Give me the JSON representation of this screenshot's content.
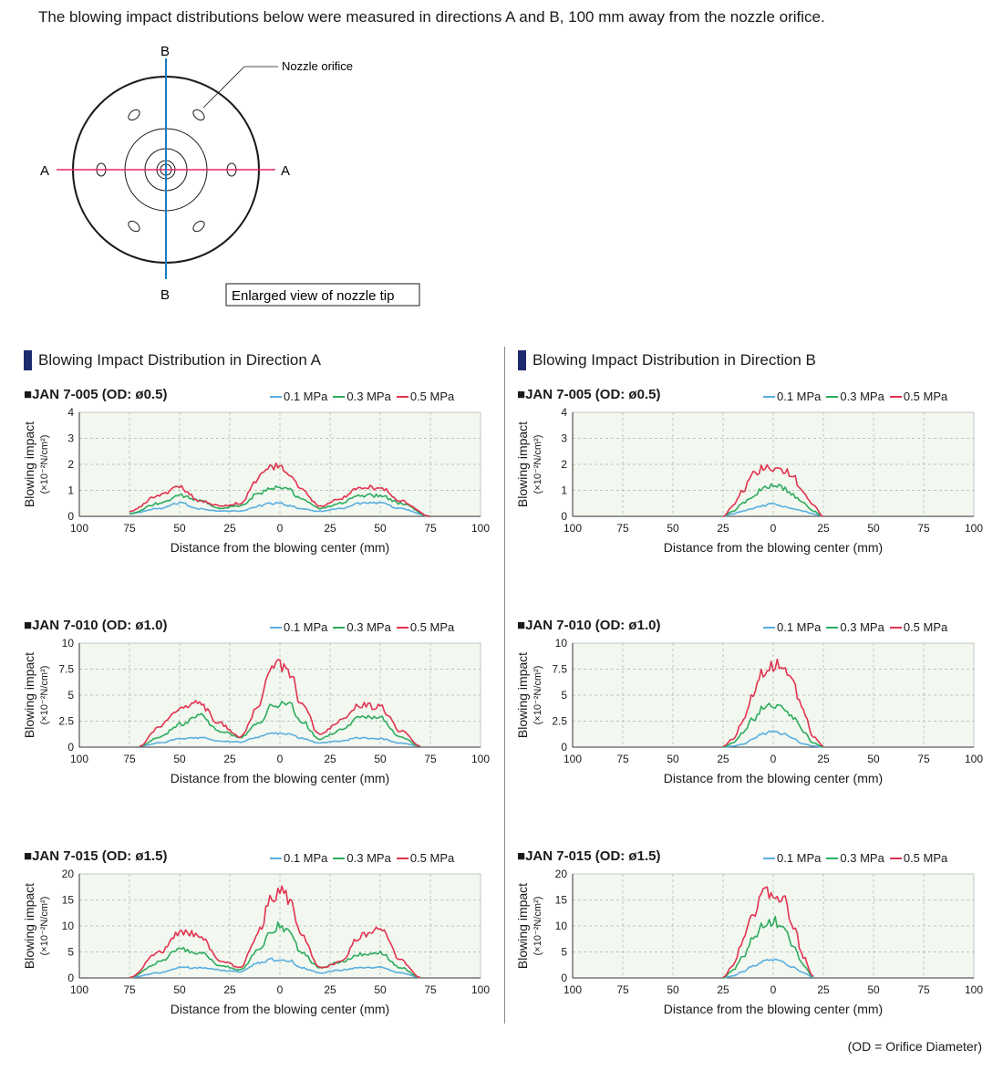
{
  "intro_text": "The blowing impact distributions below were measured in directions A and B, 100 mm away from the nozzle orifice.",
  "nozzle_diagram": {
    "orifice_label": "Nozzle orifice",
    "direction_a": "A",
    "direction_b": "B",
    "caption": "Enlarged view of nozzle tip",
    "color_a": "#e6246c",
    "color_b": "#1a7fc0"
  },
  "sections": {
    "a": {
      "title": "Blowing Impact Distribution in Direction A"
    },
    "b": {
      "title": "Blowing Impact Distribution in Direction B"
    }
  },
  "legend": [
    {
      "label": "0.1 MPa",
      "color": "#5aaee0"
    },
    {
      "label": "0.3 MPa",
      "color": "#2eab5e"
    },
    {
      "label": "0.5 MPa",
      "color": "#e2334f"
    }
  ],
  "axes": {
    "xlabel": "Distance from the blowing center (mm)",
    "ylabel": "Blowing impact",
    "yunit": "(×10⁻²N/cm²)",
    "xticks": [
      "100",
      "75",
      "50",
      "25",
      "0",
      "25",
      "50",
      "75",
      "100"
    ]
  },
  "plot_background": "#f2f8f0",
  "chart_data": [
    {
      "id": "a1",
      "type": "line",
      "direction": "A",
      "model": "JAN 7-005",
      "od": "(OD: ø0.5)",
      "xlim": [
        -100,
        100
      ],
      "ylim": [
        0,
        4
      ],
      "yticks": [
        "0",
        "1",
        "2",
        "3",
        "4"
      ],
      "x": [
        -75,
        -60,
        -50,
        -40,
        -30,
        -20,
        -10,
        -5,
        0,
        5,
        10,
        20,
        30,
        40,
        50,
        60,
        75
      ],
      "series": [
        {
          "name": "0.1 MPa",
          "values": [
            0.1,
            0.3,
            0.5,
            0.3,
            0.2,
            0.2,
            0.4,
            0.5,
            0.5,
            0.4,
            0.3,
            0.2,
            0.3,
            0.5,
            0.5,
            0.3,
            0.0
          ]
        },
        {
          "name": "0.3 MPa",
          "values": [
            0.1,
            0.5,
            0.8,
            0.6,
            0.3,
            0.4,
            0.9,
            1.1,
            1.1,
            1.0,
            0.7,
            0.3,
            0.5,
            0.8,
            0.8,
            0.5,
            0.0
          ]
        },
        {
          "name": "0.5 MPa",
          "values": [
            0.2,
            0.8,
            1.1,
            0.6,
            0.4,
            0.5,
            1.5,
            1.9,
            1.9,
            1.7,
            1.1,
            0.4,
            0.7,
            1.1,
            1.1,
            0.6,
            0.0
          ]
        }
      ]
    },
    {
      "id": "b1",
      "type": "line",
      "direction": "B",
      "model": "JAN 7-005",
      "od": "(OD: ø0.5)",
      "xlim": [
        -100,
        100
      ],
      "ylim": [
        0,
        4
      ],
      "yticks": [
        "0",
        "1",
        "2",
        "3",
        "4"
      ],
      "x": [
        -25,
        -20,
        -15,
        -10,
        -5,
        0,
        5,
        10,
        15,
        20,
        25
      ],
      "series": [
        {
          "name": "0.1 MPa",
          "values": [
            0.0,
            0.1,
            0.2,
            0.3,
            0.4,
            0.5,
            0.4,
            0.3,
            0.2,
            0.1,
            0.0
          ]
        },
        {
          "name": "0.3 MPa",
          "values": [
            0.0,
            0.2,
            0.5,
            0.8,
            1.1,
            1.2,
            1.1,
            0.8,
            0.5,
            0.2,
            0.0
          ]
        },
        {
          "name": "0.5 MPa",
          "values": [
            0.0,
            0.4,
            1.0,
            1.6,
            1.9,
            1.9,
            1.8,
            1.5,
            0.9,
            0.4,
            0.0
          ]
        }
      ]
    },
    {
      "id": "a2",
      "type": "line",
      "direction": "A",
      "model": "JAN 7-010",
      "od": "(OD: ø1.0)",
      "xlim": [
        -100,
        100
      ],
      "ylim": [
        0,
        10
      ],
      "yticks": [
        "0",
        "2.5",
        "5",
        "7.5",
        "10"
      ],
      "x": [
        -70,
        -60,
        -50,
        -40,
        -30,
        -20,
        -10,
        -5,
        0,
        5,
        10,
        20,
        30,
        40,
        50,
        60,
        70
      ],
      "series": [
        {
          "name": "0.1 MPa",
          "values": [
            0.1,
            0.4,
            0.8,
            0.9,
            0.6,
            0.5,
            1.0,
            1.3,
            1.3,
            1.2,
            0.9,
            0.4,
            0.6,
            0.9,
            0.8,
            0.4,
            0.1
          ]
        },
        {
          "name": "0.3 MPa",
          "values": [
            0.1,
            1.0,
            2.2,
            3.0,
            1.6,
            0.9,
            2.3,
            3.8,
            4.2,
            4.0,
            2.6,
            0.8,
            1.6,
            2.8,
            2.8,
            1.0,
            0.1
          ]
        },
        {
          "name": "0.5 MPa",
          "values": [
            0.1,
            2.0,
            3.7,
            4.2,
            2.3,
            1.0,
            4.0,
            7.5,
            8.0,
            7.3,
            4.4,
            1.2,
            2.5,
            4.1,
            3.8,
            1.6,
            0.1
          ]
        }
      ]
    },
    {
      "id": "b2",
      "type": "line",
      "direction": "B",
      "model": "JAN 7-010",
      "od": "(OD: ø1.0)",
      "xlim": [
        -100,
        100
      ],
      "ylim": [
        0,
        10
      ],
      "yticks": [
        "0",
        "2.5",
        "5",
        "7.5",
        "10"
      ],
      "x": [
        -25,
        -20,
        -15,
        -10,
        -5,
        0,
        5,
        10,
        15,
        20,
        25
      ],
      "series": [
        {
          "name": "0.1 MPa",
          "values": [
            0.0,
            0.1,
            0.3,
            0.8,
            1.3,
            1.6,
            1.3,
            0.8,
            0.3,
            0.1,
            0.0
          ]
        },
        {
          "name": "0.3 MPa",
          "values": [
            0.0,
            0.4,
            1.4,
            2.7,
            3.7,
            4.0,
            3.8,
            2.8,
            1.5,
            0.4,
            0.0
          ]
        },
        {
          "name": "0.5 MPa",
          "values": [
            0.1,
            0.8,
            2.6,
            5.2,
            7.4,
            8.0,
            7.7,
            6.0,
            3.4,
            1.0,
            0.1
          ]
        }
      ]
    },
    {
      "id": "a3",
      "type": "line",
      "direction": "A",
      "model": "JAN 7-015",
      "od": "(OD: ø1.5)",
      "xlim": [
        -100,
        100
      ],
      "ylim": [
        0,
        20
      ],
      "yticks": [
        "0",
        "5",
        "10",
        "15",
        "20"
      ],
      "x": [
        -75,
        -60,
        -50,
        -40,
        -30,
        -20,
        -10,
        -5,
        0,
        5,
        10,
        20,
        30,
        40,
        50,
        60,
        70
      ],
      "series": [
        {
          "name": "0.1 MPa",
          "values": [
            0.1,
            1.0,
            2.0,
            2.0,
            1.5,
            1.2,
            3.0,
            3.5,
            3.6,
            3.3,
            2.0,
            1.0,
            1.5,
            2.0,
            2.0,
            1.0,
            0.1
          ]
        },
        {
          "name": "0.3 MPa",
          "values": [
            0.1,
            3.0,
            5.5,
            5.0,
            2.5,
            1.5,
            5.5,
            9.0,
            10.0,
            9.0,
            5.0,
            2.0,
            3.0,
            4.5,
            5.0,
            2.0,
            0.1
          ]
        },
        {
          "name": "0.5 MPa",
          "values": [
            0.1,
            5.0,
            9.0,
            8.5,
            3.5,
            2.0,
            9.0,
            15.0,
            16.5,
            15.0,
            8.5,
            2.0,
            3.0,
            8.0,
            9.5,
            3.5,
            0.1
          ]
        }
      ]
    },
    {
      "id": "b3",
      "type": "line",
      "direction": "B",
      "model": "JAN 7-015",
      "od": "(OD: ø1.5)",
      "xlim": [
        -100,
        100
      ],
      "ylim": [
        0,
        20
      ],
      "yticks": [
        "0",
        "5",
        "10",
        "15",
        "20"
      ],
      "x": [
        -25,
        -20,
        -15,
        -10,
        -5,
        0,
        5,
        10,
        15,
        20
      ],
      "series": [
        {
          "name": "0.1 MPa",
          "values": [
            0.0,
            0.4,
            1.2,
            2.3,
            3.2,
            3.4,
            3.0,
            2.0,
            1.0,
            0.1
          ]
        },
        {
          "name": "0.3 MPa",
          "values": [
            0.0,
            1.5,
            4.0,
            7.5,
            10.0,
            11.0,
            9.5,
            6.0,
            2.5,
            0.2
          ]
        },
        {
          "name": "0.5 MPa",
          "values": [
            0.1,
            2.5,
            7.0,
            12.5,
            16.0,
            17.0,
            15.0,
            10.0,
            4.0,
            0.3
          ]
        }
      ]
    }
  ],
  "footnote": "(OD = Orifice Diameter)"
}
